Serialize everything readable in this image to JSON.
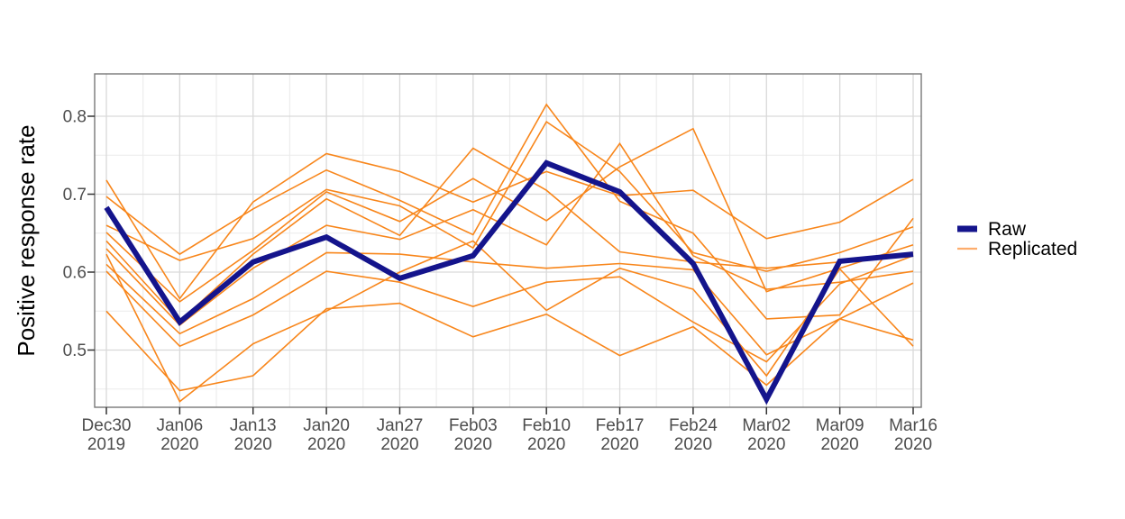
{
  "chart_data": {
    "type": "line",
    "title": "",
    "xlabel": "",
    "ylabel": "Positive response rate",
    "x_tick_labels": [
      [
        "Dec30",
        "2019"
      ],
      [
        "Jan06",
        "2020"
      ],
      [
        "Jan13",
        "2020"
      ],
      [
        "Jan20",
        "2020"
      ],
      [
        "Jan27",
        "2020"
      ],
      [
        "Feb03",
        "2020"
      ],
      [
        "Feb10",
        "2020"
      ],
      [
        "Feb17",
        "2020"
      ],
      [
        "Feb24",
        "2020"
      ],
      [
        "Mar02",
        "2020"
      ],
      [
        "Mar09",
        "2020"
      ],
      [
        "Mar16",
        "2020"
      ]
    ],
    "y_tick_labels": [
      "0.5",
      "0.6",
      "0.7",
      "0.8"
    ],
    "y_tick_values": [
      0.5,
      0.6,
      0.7,
      0.8
    ],
    "y_minor_values": [
      0.45,
      0.55,
      0.65,
      0.75
    ],
    "ylim_shown": [
      0.425,
      0.855
    ],
    "grid": "major+minor",
    "legend": {
      "position": "right",
      "items": [
        {
          "label": "Raw",
          "color": "#14148C",
          "key_stroke_width": 7
        },
        {
          "label": "Replicated",
          "color": "#FDAD6D",
          "key_stroke_width": 2.2
        }
      ]
    },
    "colors": {
      "raw_line": "#14148C",
      "replicated_line": "#F8861B",
      "panel_border": "#777777",
      "grid_major": "#D9D9D9",
      "grid_minor": "#EBEBEB",
      "tick": "#333333",
      "tick_label": "#4D4D4D",
      "axis_title": "#000000",
      "background": "#FFFFFF"
    },
    "series": [
      {
        "name": "Raw",
        "role": "raw",
        "color": "#14148C",
        "stroke_width": 6,
        "values": [
          0.683,
          0.536,
          0.613,
          0.645,
          0.592,
          0.621,
          0.74,
          0.703,
          0.611,
          0.437,
          0.614,
          0.623
        ]
      },
      {
        "name": "Replicated 1",
        "role": "replicated",
        "color": "#F8861B",
        "stroke_width": 1.6,
        "values": [
          0.718,
          0.566,
          0.69,
          0.752,
          0.729,
          0.69,
          0.729,
          0.698,
          0.705,
          0.643,
          0.664,
          0.719
        ]
      },
      {
        "name": "Replicated 2",
        "role": "replicated",
        "color": "#F8861B",
        "stroke_width": 1.6,
        "values": [
          0.697,
          0.623,
          0.681,
          0.731,
          0.692,
          0.648,
          0.815,
          0.691,
          0.65,
          0.54,
          0.545,
          0.669
        ]
      },
      {
        "name": "Replicated 3",
        "role": "replicated",
        "color": "#F8861B",
        "stroke_width": 1.6,
        "values": [
          0.66,
          0.615,
          0.643,
          0.706,
          0.685,
          0.631,
          0.793,
          0.729,
          0.625,
          0.601,
          0.625,
          0.658
        ]
      },
      {
        "name": "Replicated 4",
        "role": "replicated",
        "color": "#F8861B",
        "stroke_width": 1.6,
        "values": [
          0.651,
          0.562,
          0.628,
          0.703,
          0.665,
          0.72,
          0.666,
          0.735,
          0.784,
          0.575,
          0.605,
          0.635
        ]
      },
      {
        "name": "Replicated 5",
        "role": "replicated",
        "color": "#F8861B",
        "stroke_width": 1.6,
        "values": [
          0.64,
          0.537,
          0.623,
          0.694,
          0.647,
          0.759,
          0.705,
          0.626,
          0.613,
          0.605,
          0.613,
          0.625
        ]
      },
      {
        "name": "Replicated 6",
        "role": "replicated",
        "color": "#F8861B",
        "stroke_width": 1.6,
        "values": [
          0.63,
          0.532,
          0.605,
          0.66,
          0.642,
          0.68,
          0.635,
          0.765,
          0.621,
          0.578,
          0.587,
          0.601
        ]
      },
      {
        "name": "Replicated 7",
        "role": "replicated",
        "color": "#F8861B",
        "stroke_width": 1.6,
        "values": [
          0.61,
          0.521,
          0.566,
          0.625,
          0.623,
          0.613,
          0.605,
          0.611,
          0.603,
          0.494,
          0.54,
          0.586
        ]
      },
      {
        "name": "Replicated 8",
        "role": "replicated",
        "color": "#F8861B",
        "stroke_width": 1.6,
        "values": [
          0.601,
          0.505,
          0.545,
          0.601,
          0.587,
          0.556,
          0.587,
          0.594,
          0.536,
          0.485,
          0.585,
          0.621
        ]
      },
      {
        "name": "Replicated 9",
        "role": "replicated",
        "color": "#F8861B",
        "stroke_width": 1.6,
        "values": [
          0.55,
          0.448,
          0.467,
          0.553,
          0.56,
          0.517,
          0.546,
          0.493,
          0.53,
          0.455,
          0.54,
          0.513
        ]
      },
      {
        "name": "Replicated 10",
        "role": "replicated",
        "color": "#F8861B",
        "stroke_width": 1.6,
        "values": [
          0.623,
          0.434,
          0.508,
          0.55,
          0.6,
          0.64,
          0.551,
          0.605,
          0.578,
          0.467,
          0.604,
          0.505
        ]
      }
    ]
  }
}
